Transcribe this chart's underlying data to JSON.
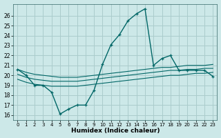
{
  "xlabel": "Humidex (Indice chaleur)",
  "background_color": "#cce8e8",
  "grid_color": "#aacccc",
  "line_color": "#006666",
  "xlim": [
    -0.5,
    23.5
  ],
  "ylim": [
    15.5,
    27.2
  ],
  "xticks": [
    0,
    1,
    2,
    3,
    4,
    5,
    6,
    7,
    8,
    9,
    10,
    11,
    12,
    13,
    14,
    15,
    16,
    17,
    18,
    19,
    20,
    21,
    22,
    23
  ],
  "yticks": [
    16,
    17,
    18,
    19,
    20,
    21,
    22,
    23,
    24,
    25,
    26
  ],
  "main_curve_x": [
    0,
    1,
    2,
    3,
    4,
    5,
    6,
    7,
    8,
    9,
    10,
    11,
    12,
    13,
    14,
    15,
    16,
    17,
    18,
    19,
    20,
    21,
    22,
    23
  ],
  "main_curve_y": [
    20.6,
    20.0,
    19.0,
    19.0,
    18.3,
    16.1,
    16.6,
    17.0,
    17.0,
    18.5,
    21.1,
    23.1,
    24.1,
    25.5,
    26.2,
    26.7,
    21.0,
    21.7,
    22.0,
    20.5,
    20.5,
    20.5,
    20.5,
    19.9
  ],
  "flat1_x": [
    0,
    1,
    2,
    3,
    4,
    5,
    6,
    7,
    8,
    9,
    10,
    11,
    12,
    13,
    14,
    15,
    16,
    17,
    18,
    19,
    20,
    21,
    22,
    23
  ],
  "flat1_y": [
    20.6,
    20.3,
    20.1,
    20.0,
    19.9,
    19.8,
    19.8,
    19.8,
    19.9,
    20.0,
    20.1,
    20.2,
    20.3,
    20.4,
    20.5,
    20.6,
    20.7,
    20.8,
    20.8,
    20.9,
    21.0,
    21.0,
    21.0,
    21.1
  ],
  "flat2_x": [
    0,
    1,
    2,
    3,
    4,
    5,
    6,
    7,
    8,
    9,
    10,
    11,
    12,
    13,
    14,
    15,
    16,
    17,
    18,
    19,
    20,
    21,
    22,
    23
  ],
  "flat2_y": [
    20.1,
    19.8,
    19.6,
    19.5,
    19.4,
    19.4,
    19.4,
    19.4,
    19.5,
    19.6,
    19.7,
    19.8,
    19.9,
    20.0,
    20.1,
    20.2,
    20.3,
    20.4,
    20.5,
    20.5,
    20.6,
    20.6,
    20.7,
    20.7
  ],
  "flat3_x": [
    0,
    1,
    2,
    3,
    4,
    5,
    6,
    7,
    8,
    9,
    10,
    11,
    12,
    13,
    14,
    15,
    16,
    17,
    18,
    19,
    20,
    21,
    22,
    23
  ],
  "flat3_y": [
    19.6,
    19.3,
    19.1,
    19.0,
    18.9,
    18.9,
    18.9,
    18.9,
    19.0,
    19.1,
    19.2,
    19.3,
    19.4,
    19.5,
    19.6,
    19.7,
    19.8,
    19.9,
    20.0,
    20.0,
    20.1,
    20.2,
    20.2,
    20.3
  ]
}
